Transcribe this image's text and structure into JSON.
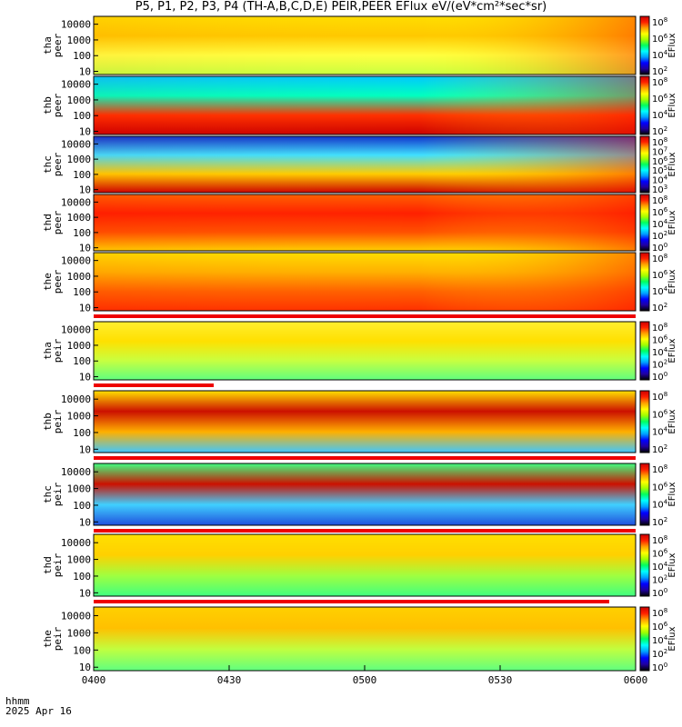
{
  "title": "P5, P1, P2, P3, P4 (TH-A,B,C,D,E) PEIR,PEER EFlux eV/(eV*cm²*sec*sr)",
  "footer": {
    "label": "hhmm",
    "date": "2025 Apr 16"
  },
  "chart_data": {
    "type": "heatmap",
    "x_ticks": [
      "0400",
      "0430",
      "0500",
      "0530",
      "0600"
    ],
    "x_range": [
      "0400",
      "0600"
    ],
    "y_scale": "log",
    "y_ticks": [
      "10",
      "100",
      "1000",
      "10000"
    ],
    "colorbar_label": "EFlux",
    "panels": [
      {
        "ylabel": [
          "tha",
          "peer"
        ],
        "cb_ticks": [
          [
            "10",
            "8"
          ],
          [
            "10",
            "6"
          ],
          [
            "10",
            "4"
          ],
          [
            "10",
            "2"
          ]
        ]
      },
      {
        "ylabel": [
          "thb",
          "peer"
        ],
        "cb_ticks": [
          [
            "10",
            "8"
          ],
          [
            "10",
            "6"
          ],
          [
            "10",
            "4"
          ],
          [
            "10",
            "2"
          ]
        ]
      },
      {
        "ylabel": [
          "thc",
          "peer"
        ],
        "cb_ticks": [
          [
            "10",
            "8"
          ],
          [
            "10",
            "7"
          ],
          [
            "10",
            "6"
          ],
          [
            "10",
            "5"
          ],
          [
            "10",
            "4"
          ],
          [
            "10",
            "3"
          ]
        ]
      },
      {
        "ylabel": [
          "thd",
          "peer"
        ],
        "cb_ticks": [
          [
            "10",
            "8"
          ],
          [
            "10",
            "6"
          ],
          [
            "10",
            "4"
          ],
          [
            "10",
            "2"
          ],
          [
            "10",
            "0"
          ]
        ]
      },
      {
        "ylabel": [
          "the",
          "peer"
        ],
        "cb_ticks": [
          [
            "10",
            "8"
          ],
          [
            "10",
            "6"
          ],
          [
            "10",
            "4"
          ],
          [
            "10",
            "2"
          ]
        ]
      },
      {
        "ylabel": [
          "tha",
          "peir"
        ],
        "cb_ticks": [
          [
            "10",
            "8"
          ],
          [
            "10",
            "6"
          ],
          [
            "10",
            "4"
          ],
          [
            "10",
            "2"
          ],
          [
            "10",
            "0"
          ]
        ]
      },
      {
        "ylabel": [
          "thb",
          "peir"
        ],
        "cb_ticks": [
          [
            "10",
            "8"
          ],
          [
            "10",
            "6"
          ],
          [
            "10",
            "4"
          ],
          [
            "10",
            "2"
          ]
        ]
      },
      {
        "ylabel": [
          "thc",
          "peir"
        ],
        "cb_ticks": [
          [
            "10",
            "8"
          ],
          [
            "10",
            "6"
          ],
          [
            "10",
            "4"
          ],
          [
            "10",
            "2"
          ]
        ]
      },
      {
        "ylabel": [
          "thd",
          "peir"
        ],
        "cb_ticks": [
          [
            "10",
            "8"
          ],
          [
            "10",
            "6"
          ],
          [
            "10",
            "4"
          ],
          [
            "10",
            "2"
          ],
          [
            "10",
            "0"
          ]
        ]
      },
      {
        "ylabel": [
          "the",
          "peir"
        ],
        "cb_ticks": [
          [
            "10",
            "8"
          ],
          [
            "10",
            "6"
          ],
          [
            "10",
            "4"
          ],
          [
            "10",
            "2"
          ],
          [
            "10",
            "0"
          ]
        ]
      }
    ],
    "colors": {
      "high": "#cc0000",
      "mid": "#ffff00",
      "low": "#0000cc",
      "min": "#000000"
    }
  }
}
